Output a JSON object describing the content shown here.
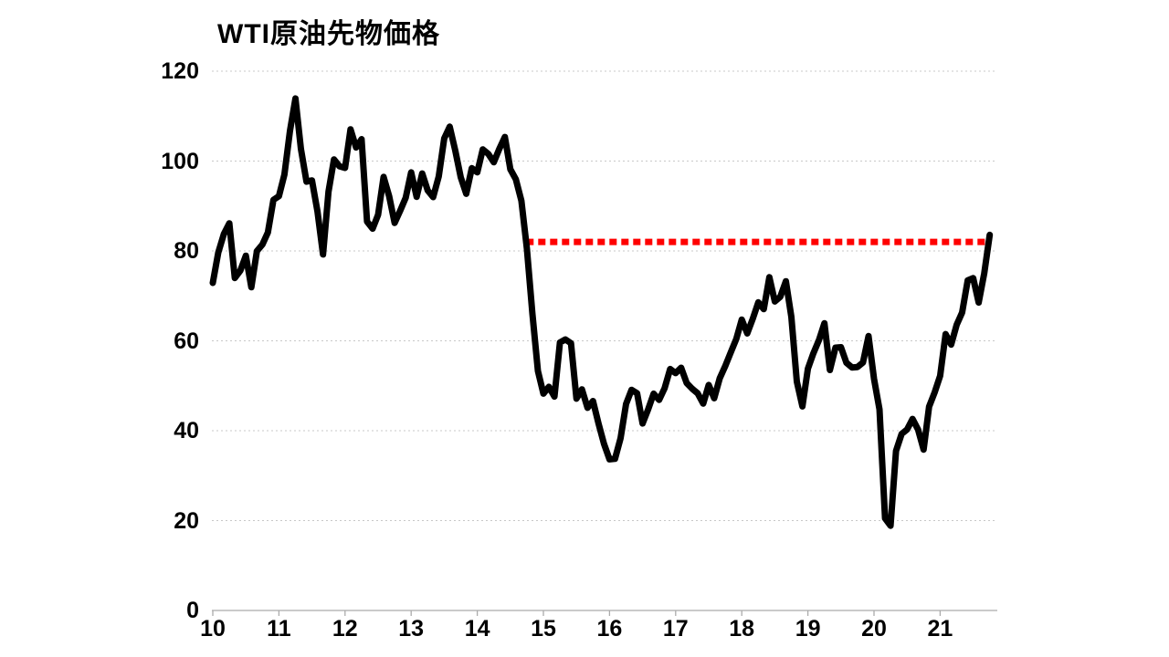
{
  "chart_data": {
    "type": "line",
    "title": "WTI原油先物価格",
    "xlabel": "",
    "ylabel": "",
    "ylim": [
      0,
      120
    ],
    "y_ticks": [
      0,
      20,
      40,
      60,
      80,
      100,
      120
    ],
    "x_ticks": [
      "10",
      "11",
      "12",
      "13",
      "14",
      "15",
      "16",
      "17",
      "18",
      "19",
      "20",
      "21"
    ],
    "x_range_note": "monthly data, Jan 2010 through Oct 2021",
    "grid": "horizontal dotted gridlines, no legend",
    "legend_position": "none",
    "colors": {
      "line": "#000000",
      "reference": "#FF0000",
      "grid": "#C8C8C8",
      "axis": "#ABABAB",
      "title": "#000000"
    },
    "series": [
      {
        "name": "WTI原油先物価格",
        "color": "#000000",
        "frequency": "monthly",
        "start": "2010-01",
        "end": "2021-10",
        "values": [
          72.89,
          79.66,
          83.76,
          86.15,
          73.97,
          75.63,
          78.95,
          71.92,
          79.97,
          81.43,
          84.11,
          91.38,
          92.19,
          96.97,
          106.72,
          113.93,
          102.7,
          95.42,
          95.7,
          88.81,
          79.2,
          93.19,
          100.36,
          98.83,
          98.48,
          107.07,
          103.02,
          104.87,
          86.53,
          84.96,
          88.06,
          96.47,
          92.19,
          86.24,
          88.91,
          91.82,
          97.49,
          92.05,
          97.23,
          93.46,
          91.97,
          96.56,
          105.03,
          107.65,
          102.33,
          96.38,
          92.72,
          98.42,
          97.49,
          102.59,
          101.58,
          99.74,
          102.71,
          105.37,
          98.17,
          95.96,
          91.16,
          80.54,
          66.15,
          53.27,
          48.24,
          49.76,
          47.6,
          59.63,
          60.3,
          59.47,
          47.12,
          49.2,
          45.09,
          46.59,
          41.65,
          37.04,
          33.62,
          33.75,
          38.34,
          45.92,
          49.1,
          48.33,
          41.6,
          44.7,
          48.24,
          46.86,
          49.44,
          53.72,
          52.81,
          54.01,
          50.6,
          49.33,
          48.32,
          46.04,
          50.17,
          47.23,
          51.67,
          54.38,
          57.4,
          60.42,
          64.73,
          61.64,
          64.94,
          68.57,
          67.04,
          74.15,
          68.76,
          69.8,
          73.25,
          65.31,
          50.93,
          45.41,
          53.79,
          57.22,
          60.14,
          63.91,
          53.5,
          58.47,
          58.58,
          55.1,
          54.07,
          54.18,
          55.17,
          61.06,
          51.56,
          44.76,
          20.48,
          18.84,
          35.49,
          39.27,
          40.27,
          42.61,
          40.22,
          35.79,
          45.34,
          48.52,
          52.2,
          61.5,
          59.16,
          63.58,
          66.32,
          73.47,
          73.95,
          68.5,
          75.03,
          83.57
        ]
      }
    ],
    "reference_line": {
      "value": 82,
      "color": "#FF0000",
      "style": "dashed",
      "from": "2014-10",
      "to": "2021-10",
      "from_month_index": 56.9,
      "to_month_index": 140.9
    }
  }
}
